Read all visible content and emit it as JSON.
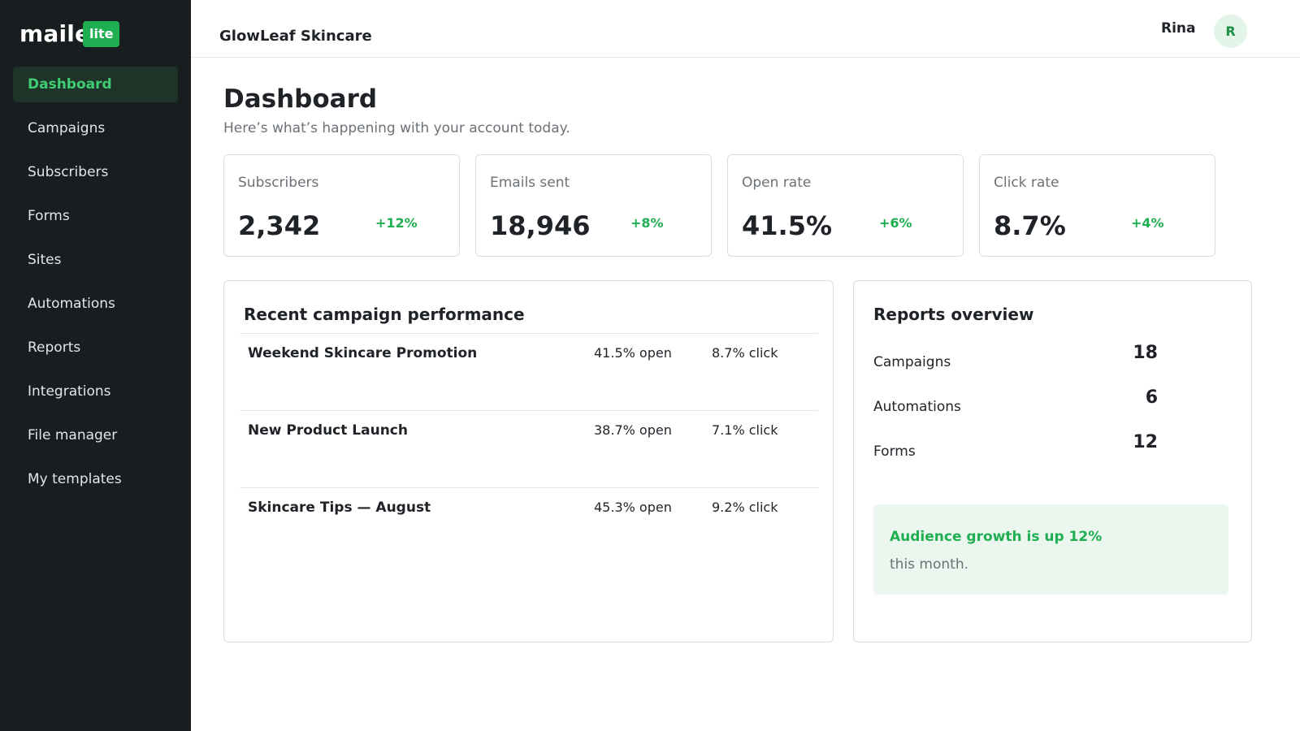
{
  "sidebar": {
    "logo": {
      "word": "mailer",
      "badge": "lite"
    },
    "items": [
      {
        "label": "Dashboard",
        "active": true
      },
      {
        "label": "Campaigns",
        "active": false
      },
      {
        "label": "Subscribers",
        "active": false
      },
      {
        "label": "Forms",
        "active": false
      },
      {
        "label": "Sites",
        "active": false
      },
      {
        "label": "Automations",
        "active": false
      },
      {
        "label": "Reports",
        "active": false
      },
      {
        "label": "Integrations",
        "active": false
      },
      {
        "label": "File manager",
        "active": false
      },
      {
        "label": "My templates",
        "active": false
      }
    ]
  },
  "topbar": {
    "account_name": "GlowLeaf Skincare",
    "user_name": "Rina",
    "avatar_initial": "R"
  },
  "main": {
    "title": "Dashboard",
    "subtitle": "Here’s what’s happening with your account today.",
    "stats": [
      {
        "label": "Subscribers",
        "value": "2,342",
        "change": "+12%"
      },
      {
        "label": "Emails sent",
        "value": "18,946",
        "change": "+8%"
      },
      {
        "label": "Open rate",
        "value": "41.5%",
        "change": "+6%"
      },
      {
        "label": "Click rate",
        "value": "8.7%",
        "change": "+4%"
      }
    ],
    "campaigns": {
      "title": "Recent campaign performance",
      "rows": [
        {
          "name": "Weekend Skincare Promotion",
          "open": "41.5% open",
          "click": "8.7% click"
        },
        {
          "name": "New Product Launch",
          "open": "38.7% open",
          "click": "7.1% click"
        },
        {
          "name": "Skincare Tips — August",
          "open": "45.3% open",
          "click": "9.2% click"
        }
      ]
    },
    "reports": {
      "title": "Reports overview",
      "rows": [
        {
          "label": "Campaigns",
          "value": "18"
        },
        {
          "label": "Automations",
          "value": "6"
        },
        {
          "label": "Forms",
          "value": "12"
        }
      ],
      "callout": {
        "title": "Audience growth is up 12%",
        "text": "this month."
      }
    }
  },
  "colors": {
    "sidebar_bg": "#181d20",
    "accent": "#1fae52",
    "active_text": "#3fcc74",
    "active_bg": "#1f3428"
  }
}
